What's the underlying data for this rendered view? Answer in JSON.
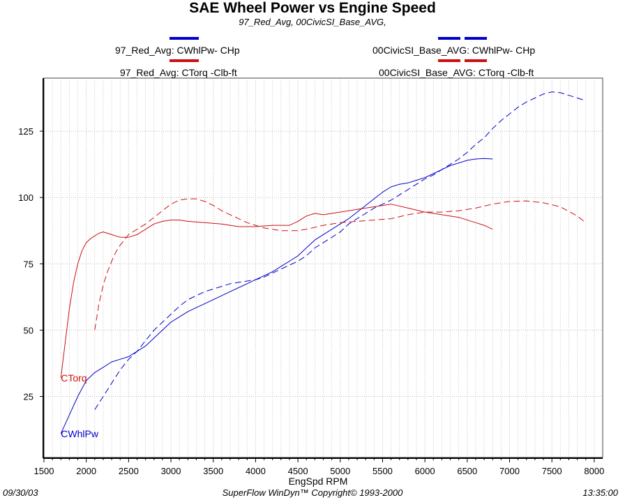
{
  "header": {
    "title": "SAE Wheel Power vs Engine Speed",
    "subtitle": "97_Red_Avg, 00CivicSI_Base_AVG,"
  },
  "legend": [
    {
      "label": "97_Red_Avg: CWhlPw- CHp",
      "color": "#0000cc",
      "style": "solid"
    },
    {
      "label": "97_Red_Avg: CTorq -Clb-ft",
      "color": "#cc1010",
      "style": "solid"
    },
    {
      "label": "00CivicSI_Base_AVG: CWhlPw- CHp",
      "color": "#0000cc",
      "style": "dashed"
    },
    {
      "label": "00CivicSI_Base_AVG: CTorq -Clb-ft",
      "color": "#cc1010",
      "style": "dashed"
    }
  ],
  "footer": {
    "date": "09/30/03",
    "copyright": "SuperFlow WinDyn™  Copyright© 1993-2000",
    "time": "13:35:00"
  },
  "colors": {
    "power": "#0000cc",
    "torque": "#cc1010",
    "grid": "#b8b8b8"
  },
  "chart_data": {
    "type": "line",
    "title": "SAE Wheel Power vs Engine Speed",
    "subtitle": "97_Red_Avg, 00CivicSI_Base_AVG,",
    "xlabel": "EngSpd  RPM",
    "ylabel": "",
    "xlim": [
      1500,
      8100
    ],
    "ylim": [
      2,
      145
    ],
    "xticks": [
      1500,
      2000,
      2500,
      3000,
      3500,
      4000,
      4500,
      5000,
      5500,
      6000,
      6500,
      7000,
      7500,
      8000
    ],
    "yticks": [
      25,
      50,
      75,
      100,
      125
    ],
    "grid": true,
    "legend_position": "top",
    "annotations": [
      {
        "text": "CTorq",
        "x": 1700,
        "y": 32,
        "color": "#cc1010"
      },
      {
        "text": "CWhlPw",
        "x": 1700,
        "y": 11,
        "color": "#0000cc"
      }
    ],
    "series": [
      {
        "name": "97_Red_Avg: CWhlPw- CHp",
        "color": "#0000cc",
        "style": "solid",
        "x": [
          1700,
          1800,
          1900,
          2000,
          2100,
          2200,
          2300,
          2400,
          2500,
          2600,
          2700,
          2800,
          2900,
          3000,
          3100,
          3200,
          3300,
          3400,
          3500,
          3600,
          3700,
          3800,
          3900,
          4000,
          4100,
          4200,
          4300,
          4400,
          4500,
          4600,
          4700,
          4800,
          4900,
          5000,
          5100,
          5200,
          5300,
          5400,
          5500,
          5600,
          5700,
          5800,
          5900,
          6000,
          6100,
          6200,
          6300,
          6400,
          6500,
          6600,
          6700,
          6800
        ],
        "values": [
          11,
          18,
          25,
          31,
          34,
          36,
          38,
          39,
          40,
          42,
          44,
          47,
          50,
          53,
          55,
          57,
          58.5,
          60,
          61.5,
          63,
          64.5,
          66,
          67.5,
          69,
          70.5,
          72,
          74,
          76,
          78,
          81,
          84,
          86,
          88,
          90,
          92,
          94.5,
          97,
          99.5,
          102,
          104,
          105,
          105.5,
          106.5,
          107.5,
          109,
          110.5,
          112,
          113,
          114,
          114.5,
          114.7,
          114.5
        ]
      },
      {
        "name": "97_Red_Avg: CTorq -Clb-ft",
        "color": "#cc1010",
        "style": "solid",
        "x": [
          1700,
          1750,
          1800,
          1850,
          1900,
          1950,
          2000,
          2050,
          2100,
          2150,
          2200,
          2300,
          2400,
          2500,
          2600,
          2700,
          2800,
          2900,
          3000,
          3100,
          3200,
          3400,
          3600,
          3800,
          4000,
          4200,
          4400,
          4500,
          4600,
          4700,
          4800,
          4900,
          5000,
          5200,
          5400,
          5600,
          5800,
          6000,
          6200,
          6400,
          6600,
          6700,
          6800
        ],
        "values": [
          32,
          45,
          58,
          68,
          75,
          80,
          83,
          84.5,
          85.5,
          86.5,
          87,
          86,
          85,
          85,
          86,
          88,
          90,
          91,
          91.5,
          91.5,
          91,
          90.5,
          90,
          89,
          89,
          89.5,
          89.5,
          91,
          93,
          94,
          93.5,
          94,
          94.5,
          95.5,
          96.5,
          97.5,
          96,
          94.5,
          93.5,
          92.5,
          90.5,
          89.5,
          88
        ]
      },
      {
        "name": "00CivicSI_Base_AVG: CWhlPw- CHp",
        "color": "#0000cc",
        "style": "dashed",
        "x": [
          2100,
          2200,
          2300,
          2400,
          2500,
          2600,
          2700,
          2800,
          2900,
          3000,
          3100,
          3200,
          3300,
          3400,
          3500,
          3600,
          3700,
          3800,
          3900,
          4000,
          4100,
          4200,
          4300,
          4400,
          4500,
          4600,
          4700,
          4800,
          4900,
          5000,
          5100,
          5200,
          5300,
          5400,
          5500,
          5600,
          5700,
          5800,
          5900,
          6000,
          6100,
          6200,
          6300,
          6400,
          6500,
          6600,
          6700,
          6800,
          6900,
          7000,
          7100,
          7200,
          7300,
          7400,
          7500,
          7600,
          7700,
          7800,
          7900
        ],
        "values": [
          20,
          25,
          30,
          35,
          39,
          42,
          46,
          50,
          53,
          56,
          59,
          61.5,
          63,
          64.5,
          65.5,
          66.5,
          67.5,
          68,
          68.5,
          69,
          70,
          71.5,
          73,
          74.5,
          76,
          78,
          81,
          83,
          85,
          87,
          90,
          92,
          94,
          96,
          97.5,
          99,
          101,
          103,
          105,
          107,
          108.5,
          110.5,
          112.5,
          114.5,
          117,
          120,
          122.5,
          126,
          129,
          131.5,
          134,
          136,
          137.5,
          139,
          139.8,
          139.5,
          138.5,
          137.5,
          136.5
        ]
      },
      {
        "name": "00CivicSI_Base_AVG: CTorq -Clb-ft",
        "color": "#cc1010",
        "style": "dashed",
        "x": [
          2100,
          2150,
          2200,
          2250,
          2300,
          2350,
          2400,
          2500,
          2600,
          2700,
          2800,
          2900,
          3000,
          3100,
          3200,
          3300,
          3400,
          3500,
          3600,
          3700,
          3800,
          3900,
          4000,
          4100,
          4200,
          4300,
          4400,
          4500,
          4600,
          4800,
          5000,
          5200,
          5400,
          5600,
          5800,
          6000,
          6200,
          6400,
          6600,
          6800,
          7000,
          7200,
          7400,
          7600,
          7800,
          7900
        ],
        "values": [
          50,
          60,
          67,
          72,
          76,
          79.5,
          82,
          86,
          88,
          90,
          92.5,
          95,
          97.5,
          99,
          99.5,
          99.5,
          98.5,
          97,
          95,
          93.5,
          92,
          90.5,
          89.5,
          88.5,
          88,
          87.5,
          87.5,
          87.5,
          88,
          89.5,
          90.5,
          91,
          91.5,
          92,
          93.5,
          94.5,
          94.5,
          95,
          96,
          97.5,
          98.5,
          98.7,
          98,
          96.5,
          93,
          90.5
        ]
      }
    ]
  }
}
